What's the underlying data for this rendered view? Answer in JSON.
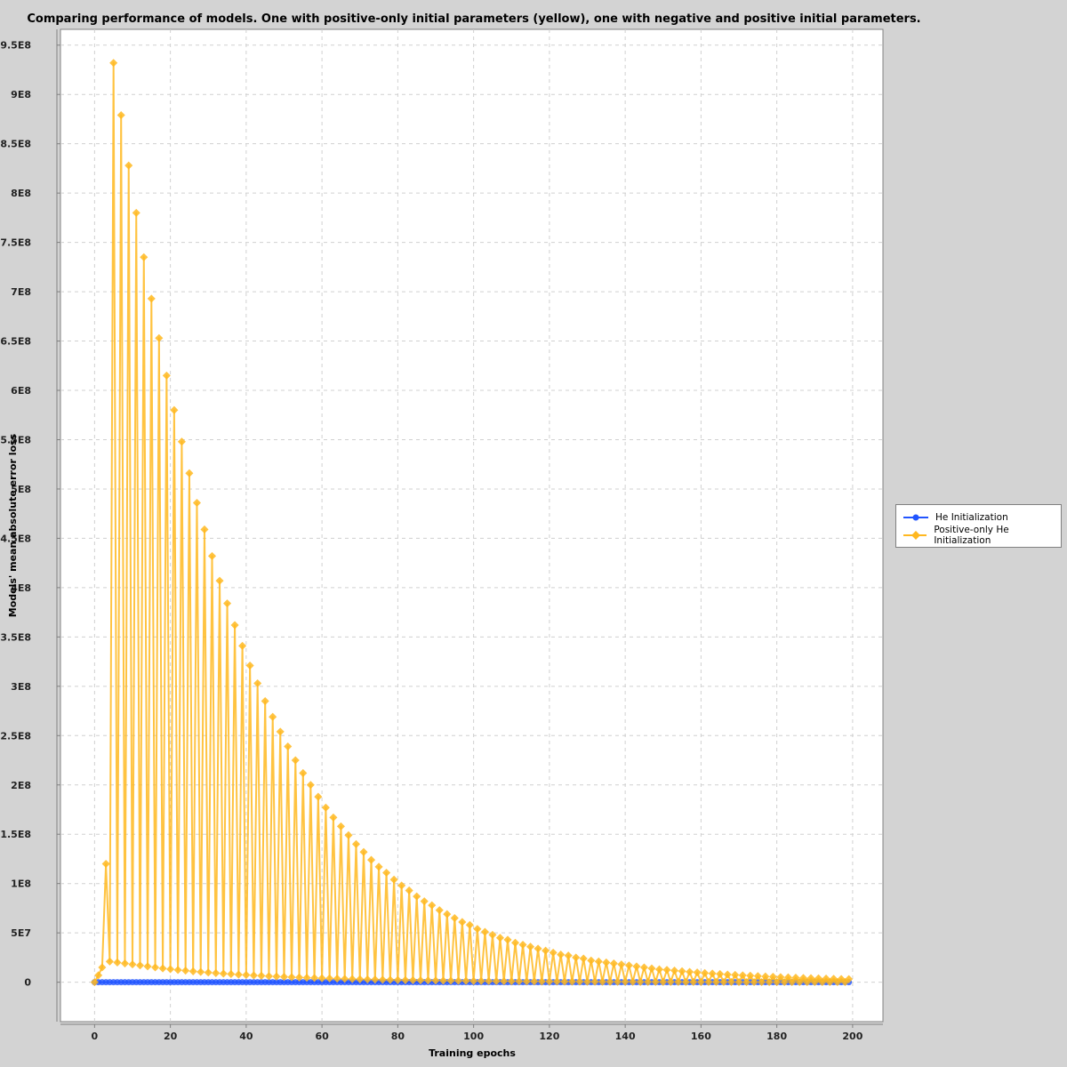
{
  "chart_data": {
    "type": "line",
    "title": "Comparing performance of models. One with positive-only initial parameters (yellow), one with negative and positive initial parameters.",
    "xlabel": "Training epochs",
    "ylabel": "Models' mean absolute error loss",
    "xlim": [
      -9,
      208
    ],
    "ylim": [
      -40000000,
      966000000
    ],
    "x_ticks": [
      0,
      20,
      40,
      60,
      80,
      100,
      120,
      140,
      160,
      180,
      200
    ],
    "x_tick_labels": [
      "0",
      "20",
      "40",
      "60",
      "80",
      "100",
      "120",
      "140",
      "160",
      "180",
      "200"
    ],
    "y_ticks": [
      0,
      50000000,
      100000000,
      150000000,
      200000000,
      250000000,
      300000000,
      350000000,
      400000000,
      450000000,
      500000000,
      550000000,
      600000000,
      650000000,
      700000000,
      750000000,
      800000000,
      850000000,
      900000000,
      950000000
    ],
    "y_tick_labels": [
      "0",
      "5E7",
      "1E8",
      "1.5E8",
      "2E8",
      "2.5E8",
      "3E8",
      "3.5E8",
      "4E8",
      "4.5E8",
      "5E8",
      "5.5E8",
      "6E8",
      "6.5E8",
      "7E8",
      "7.5E8",
      "8E8",
      "8.5E8",
      "9E8",
      "9.5E8"
    ],
    "grid": true,
    "legend_position": "right",
    "series": [
      {
        "name": "He Initialization",
        "color": "#2255ff",
        "marker": "circle",
        "x_range": [
          0,
          199
        ],
        "values": "approximately 0 for all epochs"
      },
      {
        "name": "Positive-only He Initialization",
        "color": "#ffb820",
        "marker": "diamond",
        "x": [
          0,
          1,
          2,
          3,
          4,
          5,
          6,
          7,
          8,
          9,
          10,
          11,
          12,
          13,
          14,
          15,
          16,
          17,
          18,
          19,
          20,
          21,
          22,
          23,
          24,
          25,
          26,
          27,
          28,
          29,
          30,
          31,
          32,
          33,
          34,
          35,
          36,
          37,
          38,
          39,
          40,
          41,
          42,
          43,
          44,
          45,
          46,
          47,
          48,
          49,
          50,
          51,
          52,
          53,
          54,
          55,
          56,
          57,
          58,
          59,
          60,
          61,
          62,
          63,
          64,
          65,
          66,
          67,
          68,
          69,
          70,
          71,
          72,
          73,
          74,
          75,
          76,
          77,
          78,
          79,
          80,
          81,
          82,
          83,
          84,
          85,
          86,
          87,
          88,
          89,
          90,
          91,
          92,
          93,
          94,
          95,
          96,
          97,
          98,
          99,
          100,
          101,
          102,
          103,
          104,
          105,
          106,
          107,
          108,
          109,
          110,
          111,
          112,
          113,
          114,
          115,
          116,
          117,
          118,
          119,
          120,
          121,
          122,
          123,
          124,
          125,
          126,
          127,
          128,
          129,
          130,
          131,
          132,
          133,
          134,
          135,
          136,
          137,
          138,
          139,
          140,
          141,
          142,
          143,
          144,
          145,
          146,
          147,
          148,
          149,
          150,
          151,
          152,
          153,
          154,
          155,
          156,
          157,
          158,
          159,
          160,
          161,
          162,
          163,
          164,
          165,
          166,
          167,
          168,
          169,
          170,
          171,
          172,
          173,
          174,
          175,
          176,
          177,
          178,
          179,
          180,
          181,
          182,
          183,
          184,
          185,
          186,
          187,
          188,
          189,
          190,
          191,
          192,
          193,
          194,
          195,
          196,
          197,
          198,
          199
        ],
        "peaks": {
          "x": [
            3,
            5,
            7,
            9,
            11,
            13,
            15,
            17,
            19,
            21,
            23,
            25,
            27,
            29,
            31,
            33,
            35,
            37,
            39,
            41,
            43,
            45,
            47,
            49,
            51,
            53,
            55,
            57,
            59,
            61,
            63,
            65,
            67,
            69,
            71,
            73,
            75,
            77,
            79,
            81,
            83,
            85,
            87,
            89,
            91,
            93,
            95,
            97,
            99,
            101,
            103,
            105,
            107,
            109,
            111,
            113,
            115,
            117,
            119,
            121,
            123,
            125,
            127,
            129,
            131,
            133,
            135,
            137,
            139,
            141,
            143,
            145,
            147,
            149,
            151,
            153,
            155,
            157,
            159,
            161,
            163,
            165,
            167,
            169,
            171,
            173,
            175,
            177,
            179,
            181,
            183,
            185,
            187,
            189,
            191,
            193,
            195,
            197,
            199
          ],
          "y": [
            120000000,
            932000000,
            879000000,
            828000000,
            780000000,
            735000000,
            693000000,
            653000000,
            615000000,
            580000000,
            548000000,
            516000000,
            486000000,
            459000000,
            432000000,
            407000000,
            384000000,
            362000000,
            341000000,
            321000000,
            303000000,
            285000000,
            269000000,
            254000000,
            239000000,
            225000000,
            212000000,
            200000000,
            188000000,
            177000000,
            167000000,
            158000000,
            149000000,
            140000000,
            132000000,
            124000000,
            117000000,
            111000000,
            104000000,
            98000000,
            93000000,
            87000000,
            82000000,
            78000000,
            73000000,
            69000000,
            65000000,
            61000000,
            58000000,
            54000000,
            51000000,
            48000000,
            45000000,
            43000000,
            40000000,
            38000000,
            36000000,
            34000000,
            32000000,
            30000000,
            28000000,
            27000000,
            25000000,
            24000000,
            22000000,
            21000000,
            20000000,
            19000000,
            18000000,
            17000000,
            16000000,
            15000000,
            14000000,
            13000000,
            12500000,
            11800000,
            11100000,
            10500000,
            9900000,
            9300000,
            8800000,
            8300000,
            7800000,
            7400000,
            7000000,
            6600000,
            6200000,
            5800000,
            5500000,
            5200000,
            4900000,
            4600000,
            4300000,
            4100000,
            3900000,
            3700000,
            3500000,
            3300000,
            3100000
          ]
        },
        "troughs": {
          "x": [
            0,
            1,
            2,
            4,
            6,
            8,
            10,
            12,
            14,
            16,
            18,
            20,
            22,
            24,
            26,
            28,
            30,
            32,
            34,
            36,
            38,
            40,
            42,
            44,
            46,
            48,
            50,
            52,
            54,
            56,
            58,
            60,
            62,
            64,
            66,
            68,
            70,
            72,
            74,
            76,
            78,
            80,
            82,
            84,
            86,
            88,
            90,
            92,
            94,
            96,
            98,
            100,
            102,
            104,
            106,
            108,
            110,
            112,
            114,
            116,
            118,
            120,
            122,
            124,
            126,
            128,
            130,
            132,
            134,
            136,
            138,
            140,
            142,
            144,
            146,
            148,
            150,
            152,
            154,
            156,
            158,
            160,
            162,
            164,
            166,
            168,
            170,
            172,
            174,
            176,
            178,
            180,
            182,
            184,
            186,
            188,
            190,
            192,
            194,
            196,
            198
          ],
          "y": [
            0,
            7000000,
            15000000,
            21000000,
            20000000,
            19000000,
            18000000,
            17000000,
            16000000,
            15000000,
            14000000,
            13200000,
            12400000,
            11700000,
            11000000,
            10400000,
            9800000,
            9200000,
            8700000,
            8200000,
            7700000,
            7300000,
            6900000,
            6500000,
            6100000,
            5800000,
            5400000,
            5100000,
            4800000,
            4500000,
            4300000,
            4000000,
            3800000,
            3600000,
            3400000,
            3200000,
            3000000,
            2800000,
            2700000,
            2500000,
            2400000,
            2200000,
            2100000,
            2000000,
            1900000,
            1800000,
            1700000,
            1600000,
            1500000,
            1400000,
            1300000,
            1200000,
            1200000,
            1100000,
            1000000,
            1000000,
            900000,
            900000,
            800000,
            800000,
            700000,
            700000,
            700000,
            600000,
            600000,
            600000,
            500000,
            500000,
            500000,
            400000,
            400000,
            400000,
            400000,
            300000,
            300000,
            300000,
            300000,
            300000,
            300000,
            200000,
            200000,
            200000,
            200000,
            200000,
            200000,
            200000,
            100000,
            100000,
            100000,
            100000,
            100000,
            100000,
            100000,
            100000,
            100000,
            100000,
            100000,
            100000,
            100000,
            100000,
            100000
          ]
        }
      }
    ]
  }
}
